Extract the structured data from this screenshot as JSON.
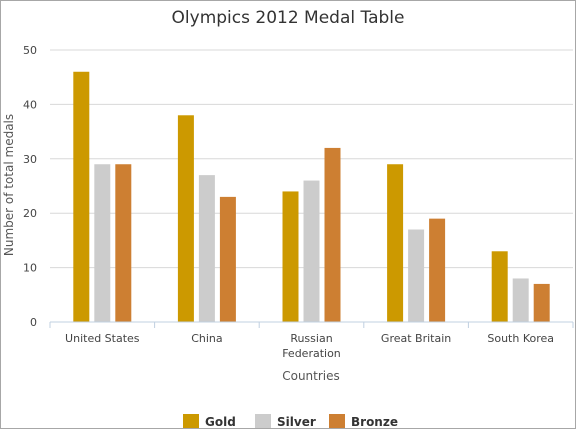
{
  "chart_data": {
    "type": "bar",
    "title": "Olympics 2012 Medal Table",
    "xlabel": "Countries",
    "ylabel": "Number of total medals",
    "categories": [
      "United States",
      "China",
      "Russian Federation",
      "Great Britain",
      "South Korea"
    ],
    "category_lines": [
      [
        "United States"
      ],
      [
        "China"
      ],
      [
        "Russian",
        "Federation"
      ],
      [
        "Great Britain"
      ],
      [
        "South Korea"
      ]
    ],
    "yticks": [
      0,
      10,
      20,
      30,
      40,
      50
    ],
    "ylim": [
      0,
      50
    ],
    "grid": true,
    "legend_position": "bottom",
    "series": [
      {
        "name": "Gold",
        "color": "#cc9900",
        "values": [
          46,
          38,
          24,
          29,
          13
        ]
      },
      {
        "name": "Silver",
        "color": "#cccccc",
        "values": [
          29,
          27,
          26,
          17,
          8
        ]
      },
      {
        "name": "Bronze",
        "color": "#cd7f32",
        "values": [
          29,
          23,
          32,
          19,
          7
        ]
      }
    ]
  }
}
